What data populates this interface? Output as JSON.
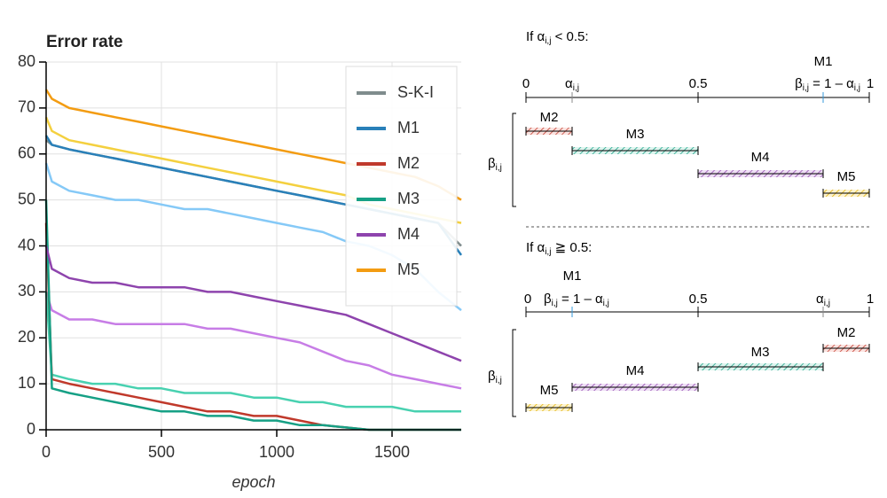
{
  "chart_data": {
    "type": "line",
    "title": "Error rate",
    "x_label": "epoch",
    "x": [
      0,
      25,
      100,
      200,
      300,
      400,
      500,
      600,
      700,
      800,
      900,
      1000,
      1100,
      1200,
      1300,
      1400,
      1500,
      1600,
      1700,
      1800
    ],
    "xlim": [
      0,
      1800
    ],
    "xticks": [
      0,
      500,
      1000,
      1500
    ],
    "ylim": [
      0,
      80
    ],
    "yticks": [
      0,
      10,
      20,
      30,
      40,
      50,
      60,
      70,
      80
    ],
    "grid": true,
    "legend": "upper right",
    "series": [
      {
        "color": "#f4d03f",
        "values": [
          68,
          65,
          63,
          62,
          61,
          60,
          59,
          58,
          57,
          56,
          55,
          54,
          53,
          52,
          51,
          49,
          48,
          47,
          46,
          45
        ]
      },
      {
        "color": "#85c9f7",
        "values": [
          58,
          54,
          52,
          51,
          50,
          50,
          49,
          48,
          48,
          47,
          46,
          45,
          44,
          43,
          41,
          40,
          38,
          35,
          30,
          26
        ]
      },
      {
        "color": "#c77de6",
        "values": [
          30,
          26,
          24,
          24,
          23,
          23,
          23,
          23,
          22,
          22,
          21,
          20,
          19,
          17,
          15,
          14,
          12,
          11,
          10,
          9
        ]
      },
      {
        "color": "#48d1b0",
        "values": [
          30,
          12,
          11,
          10,
          10,
          9,
          9,
          8,
          8,
          8,
          7,
          7,
          6,
          6,
          5,
          5,
          5,
          4,
          4,
          4
        ]
      },
      {
        "name": "S-K-I",
        "color": "#7f8c8d",
        "values": [
          63,
          62,
          61,
          60,
          59,
          58,
          57,
          56,
          55,
          54,
          53,
          52,
          51,
          50,
          49,
          48,
          47,
          46,
          45,
          40
        ]
      },
      {
        "name": "M1",
        "color": "#2980b9",
        "values": [
          64,
          62,
          61,
          60,
          59,
          58,
          57,
          56,
          55,
          54,
          53,
          52,
          51,
          50,
          49,
          48,
          47,
          46,
          45,
          38
        ]
      },
      {
        "name": "M2",
        "color": "#c0392b",
        "values": [
          45,
          11,
          10,
          9,
          8,
          7,
          6,
          5,
          4,
          4,
          3,
          3,
          2,
          1,
          0.5,
          0,
          0,
          0,
          0,
          0
        ]
      },
      {
        "name": "M3",
        "color": "#16a085",
        "values": [
          50,
          9,
          8,
          7,
          6,
          5,
          4,
          4,
          3,
          3,
          2,
          2,
          1,
          1,
          0.5,
          0,
          0,
          0,
          0,
          0
        ]
      },
      {
        "name": "M4",
        "color": "#8e44ad",
        "values": [
          40,
          35,
          33,
          32,
          32,
          31,
          31,
          31,
          30,
          30,
          29,
          28,
          27,
          26,
          25,
          23,
          21,
          19,
          17,
          15
        ]
      },
      {
        "name": "M5",
        "color": "#f39c12",
        "values": [
          74,
          72,
          70,
          69,
          68,
          67,
          66,
          65,
          64,
          63,
          62,
          61,
          60,
          59,
          58,
          57,
          56,
          55,
          53,
          50
        ]
      }
    ]
  },
  "diagram": {
    "top": {
      "condition": [
        "If α",
        "i,j",
        " < 0.5:"
      ],
      "zero": "0",
      "alpha": [
        "α",
        "i,j"
      ],
      "half": "0.5",
      "one": "1",
      "m1": "M1",
      "beta_eq": [
        "β",
        "i,j",
        " = 1 – α",
        "i,j"
      ],
      "bars": [
        "M2",
        "M3",
        "M4",
        "M5"
      ],
      "beta": [
        "β",
        "i,j"
      ]
    },
    "bottom": {
      "condition": [
        "If α",
        "i,j",
        " ≧ 0.5:"
      ],
      "zero": "0",
      "alpha": [
        "α",
        "i,j"
      ],
      "half": "0.5",
      "one": "1",
      "m1": "M1",
      "beta_eq": [
        "β",
        "i,j",
        " = 1 – α",
        "i,j"
      ],
      "bars": [
        "M2",
        "M3",
        "M4",
        "M5"
      ],
      "beta": [
        "β",
        "i,j"
      ]
    }
  }
}
